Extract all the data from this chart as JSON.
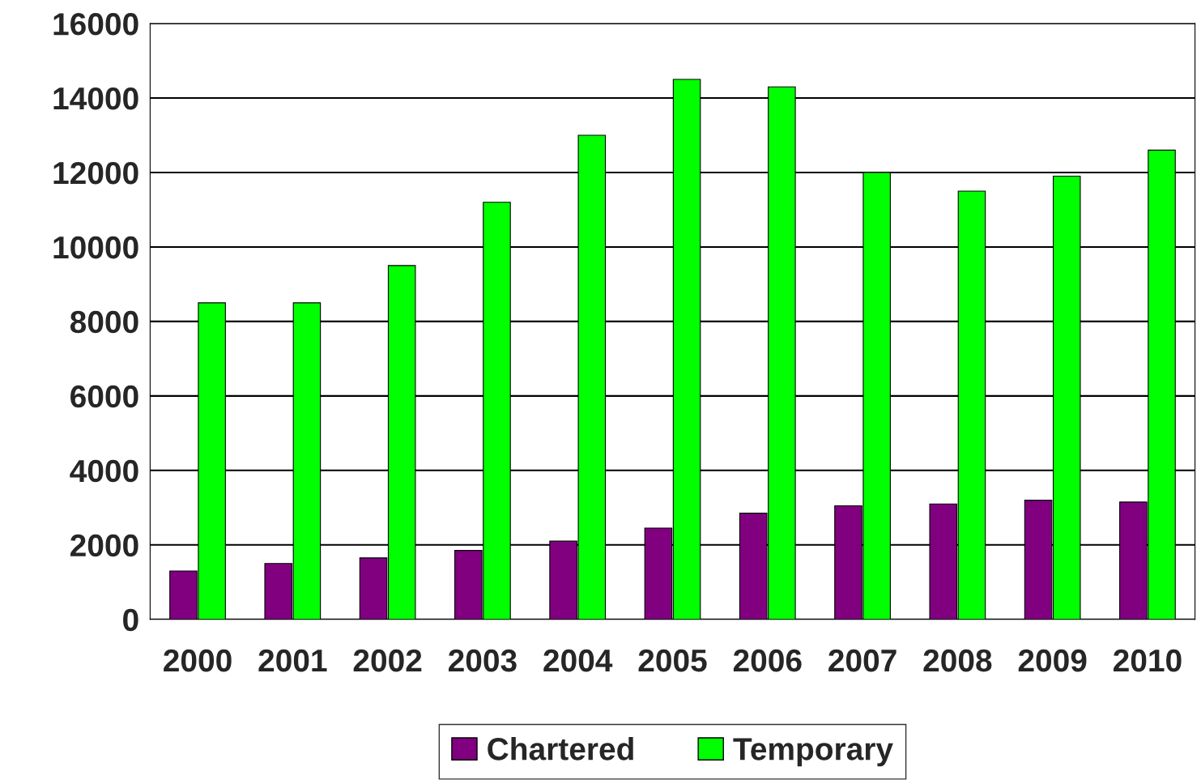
{
  "chart_data": {
    "type": "bar",
    "categories": [
      "2000",
      "2001",
      "2002",
      "2003",
      "2004",
      "2005",
      "2006",
      "2007",
      "2008",
      "2009",
      "2010"
    ],
    "series": [
      {
        "name": "Chartered",
        "color": "#800080",
        "values": [
          1300,
          1500,
          1650,
          1850,
          2100,
          2450,
          2850,
          3050,
          3100,
          3200,
          3150
        ]
      },
      {
        "name": "Temporary",
        "color": "#00ff00",
        "values": [
          8500,
          8500,
          9500,
          11200,
          13000,
          14500,
          14300,
          12000,
          11500,
          11900,
          12600
        ]
      }
    ],
    "ylim": [
      0,
      16000
    ],
    "yticks": [
      0,
      2000,
      4000,
      6000,
      8000,
      10000,
      12000,
      14000,
      16000
    ],
    "grid": "y",
    "legend": "bottom"
  }
}
